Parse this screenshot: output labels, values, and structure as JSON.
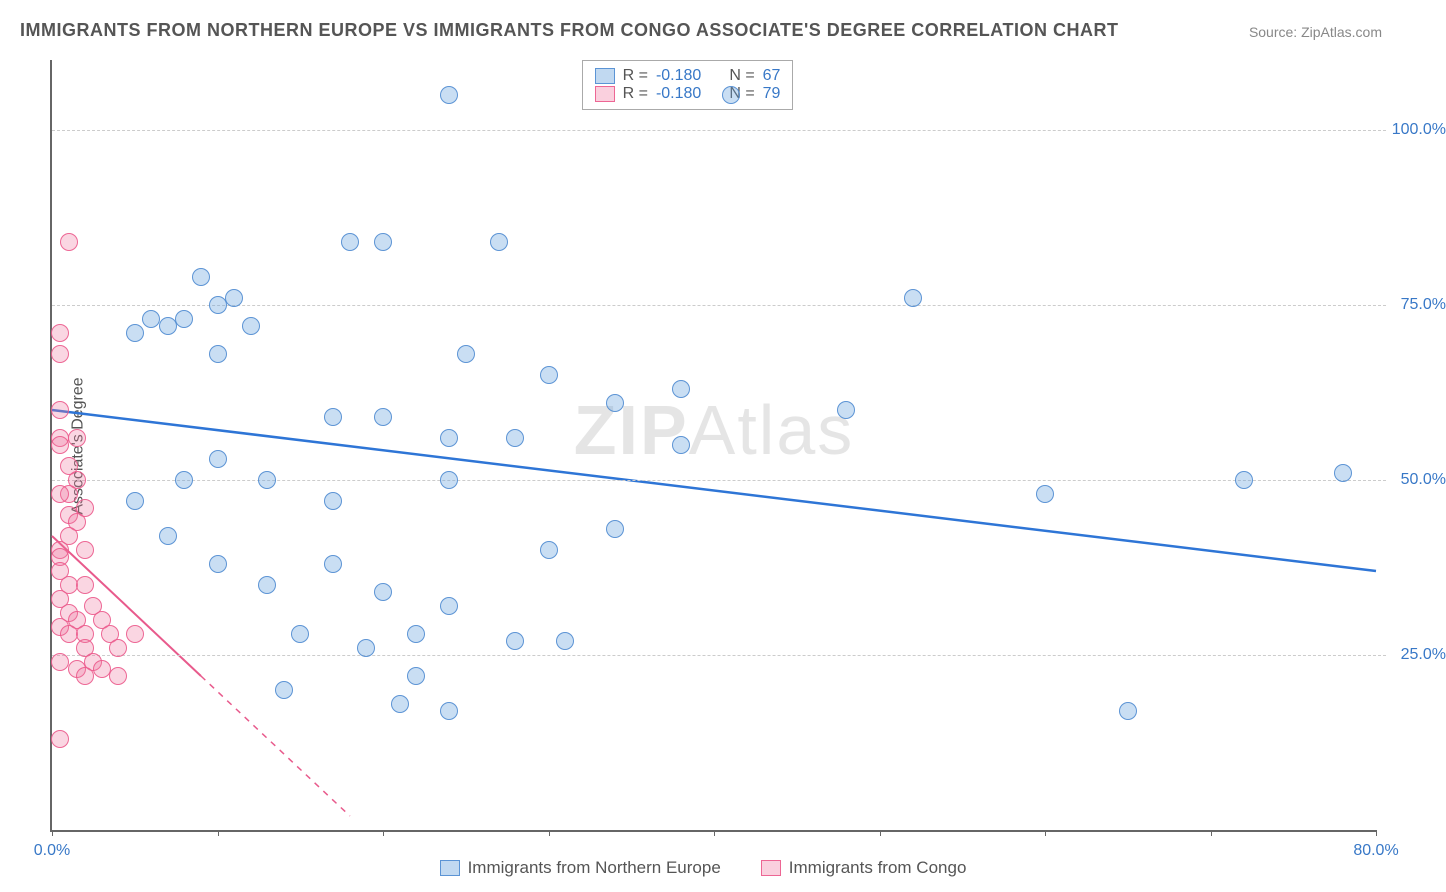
{
  "title": "IMMIGRANTS FROM NORTHERN EUROPE VS IMMIGRANTS FROM CONGO ASSOCIATE'S DEGREE CORRELATION CHART",
  "source": "Source: ZipAtlas.com",
  "ylabel": "Associate's Degree",
  "watermark_part1": "ZIP",
  "watermark_part2": "Atlas",
  "chart": {
    "type": "scatter",
    "background_color": "#ffffff",
    "grid_color": "#cccccc",
    "axis_color": "#666666",
    "xlim": [
      0,
      80
    ],
    "ylim": [
      0,
      110
    ],
    "xticks": [
      0,
      10,
      20,
      30,
      40,
      50,
      60,
      70,
      80
    ],
    "xtick_labels": {
      "0": "0.0%",
      "80": "80.0%"
    },
    "yticks": [
      25,
      50,
      75,
      100
    ],
    "ytick_labels": {
      "25": "25.0%",
      "50": "50.0%",
      "75": "75.0%",
      "100": "100.0%"
    },
    "marker_radius": 9,
    "series": [
      {
        "name": "Immigrants from Northern Europe",
        "color_fill": "rgba(100,160,220,0.35)",
        "color_stroke": "rgba(80,140,210,0.9)",
        "R": "-0.180",
        "N": "67",
        "trend": {
          "x1": 0,
          "y1": 60,
          "x2": 80,
          "y2": 37,
          "color": "#2e75d6",
          "width": 2.5,
          "dash_after_x": 80
        },
        "points": [
          [
            24,
            105
          ],
          [
            41,
            105
          ],
          [
            52,
            76
          ],
          [
            5,
            71
          ],
          [
            6,
            73
          ],
          [
            7,
            72
          ],
          [
            8,
            73
          ],
          [
            10,
            75
          ],
          [
            12,
            72
          ],
          [
            9,
            79
          ],
          [
            11,
            76
          ],
          [
            18,
            84
          ],
          [
            20,
            84
          ],
          [
            27,
            84
          ],
          [
            38,
            63
          ],
          [
            10,
            68
          ],
          [
            25,
            68
          ],
          [
            17,
            59
          ],
          [
            20,
            59
          ],
          [
            24,
            56
          ],
          [
            28,
            56
          ],
          [
            30,
            65
          ],
          [
            34,
            61
          ],
          [
            38,
            55
          ],
          [
            24,
            50
          ],
          [
            17,
            47
          ],
          [
            13,
            50
          ],
          [
            10,
            53
          ],
          [
            8,
            50
          ],
          [
            5,
            47
          ],
          [
            7,
            42
          ],
          [
            10,
            38
          ],
          [
            13,
            35
          ],
          [
            17,
            38
          ],
          [
            20,
            34
          ],
          [
            24,
            32
          ],
          [
            30,
            40
          ],
          [
            34,
            43
          ],
          [
            15,
            28
          ],
          [
            19,
            26
          ],
          [
            22,
            28
          ],
          [
            28,
            27
          ],
          [
            31,
            27
          ],
          [
            14,
            20
          ],
          [
            21,
            18
          ],
          [
            22,
            22
          ],
          [
            24,
            17
          ],
          [
            65,
            17
          ],
          [
            48,
            60
          ],
          [
            72,
            50
          ],
          [
            60,
            48
          ],
          [
            78,
            51
          ]
        ]
      },
      {
        "name": "Immigrants from Congo",
        "color_fill": "rgba(240,120,160,0.3)",
        "color_stroke": "rgba(235,90,140,0.9)",
        "R": "-0.180",
        "N": "79",
        "trend": {
          "x1": 0,
          "y1": 42,
          "x2": 9,
          "y2": 22,
          "color": "#e85a8c",
          "width": 2,
          "dash_after_x": 9,
          "dash_to_x": 18,
          "dash_to_y": 2
        },
        "points": [
          [
            1,
            84
          ],
          [
            0.5,
            71
          ],
          [
            0.5,
            68
          ],
          [
            0.5,
            60
          ],
          [
            0.5,
            56
          ],
          [
            0.5,
            55
          ],
          [
            1.5,
            56
          ],
          [
            1,
            52
          ],
          [
            1.5,
            50
          ],
          [
            1,
            48
          ],
          [
            2,
            46
          ],
          [
            0.5,
            48
          ],
          [
            1,
            45
          ],
          [
            1.5,
            44
          ],
          [
            1,
            42
          ],
          [
            0.5,
            40
          ],
          [
            0.5,
            39
          ],
          [
            2,
            40
          ],
          [
            0.5,
            37
          ],
          [
            1,
            35
          ],
          [
            0.5,
            33
          ],
          [
            2,
            35
          ],
          [
            2.5,
            32
          ],
          [
            1,
            31
          ],
          [
            1.5,
            30
          ],
          [
            0.5,
            29
          ],
          [
            3,
            30
          ],
          [
            1,
            28
          ],
          [
            2,
            28
          ],
          [
            3.5,
            28
          ],
          [
            2,
            26
          ],
          [
            2.5,
            24
          ],
          [
            4,
            26
          ],
          [
            0.5,
            24
          ],
          [
            1.5,
            23
          ],
          [
            3,
            23
          ],
          [
            2,
            22
          ],
          [
            4,
            22
          ],
          [
            5,
            28
          ],
          [
            0.5,
            13
          ]
        ]
      }
    ],
    "label_fontsize": 16,
    "tick_color": "#3878c7"
  },
  "legend_top": {
    "R_label": "R =",
    "N_label": "N ="
  }
}
